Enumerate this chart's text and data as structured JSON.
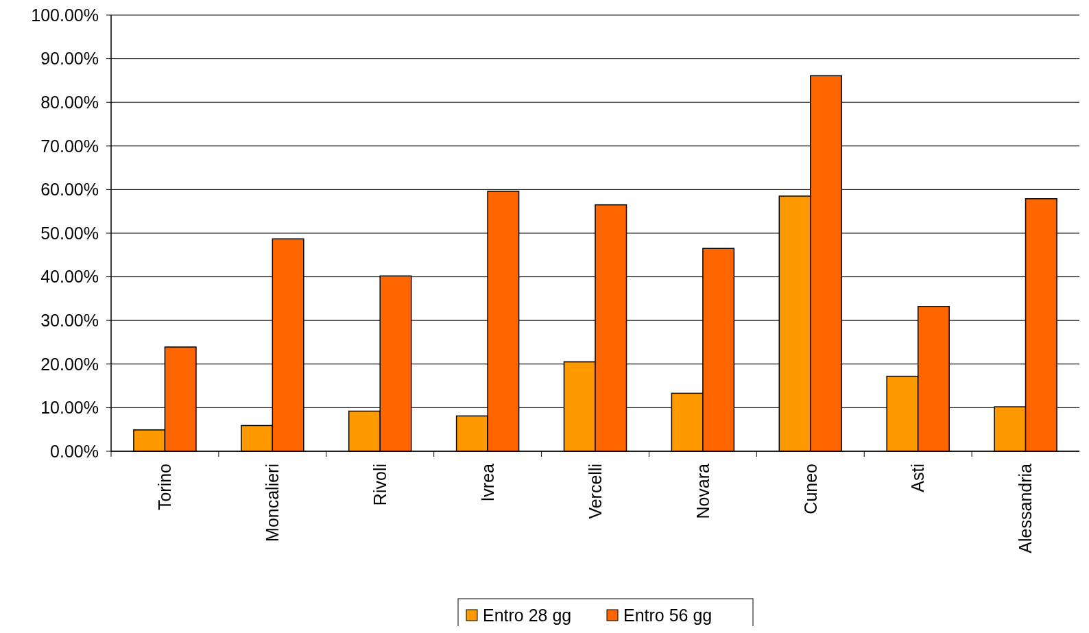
{
  "chart_data": {
    "type": "bar",
    "categories": [
      "Torino",
      "Moncalieri",
      "Rivoli",
      "Ivrea",
      "Vercelli",
      "Novara",
      "Cuneo",
      "Asti",
      "Alessandria"
    ],
    "series": [
      {
        "name": "Entro 28 gg",
        "color": "#ff9900",
        "values": [
          4.9,
          5.9,
          9.2,
          8.1,
          20.5,
          13.3,
          58.5,
          17.2,
          10.2
        ]
      },
      {
        "name": "Entro 56 gg",
        "color": "#ff6600",
        "values": [
          23.9,
          48.7,
          40.2,
          59.6,
          56.5,
          46.5,
          86.1,
          33.2,
          57.9
        ]
      }
    ],
    "ylim": [
      0,
      100
    ],
    "yticks": [
      {
        "value": 0,
        "label": "0.00%"
      },
      {
        "value": 10,
        "label": "10.00%"
      },
      {
        "value": 20,
        "label": "20.00%"
      },
      {
        "value": 30,
        "label": "30.00%"
      },
      {
        "value": 40,
        "label": "40.00%"
      },
      {
        "value": 50,
        "label": "50.00%"
      },
      {
        "value": 60,
        "label": "60.00%"
      },
      {
        "value": 70,
        "label": "70.00%"
      },
      {
        "value": 80,
        "label": "80.00%"
      },
      {
        "value": 90,
        "label": "90.00%"
      },
      {
        "value": 100,
        "label": "100.00%"
      }
    ],
    "grid": "y",
    "legend": "bottom"
  }
}
